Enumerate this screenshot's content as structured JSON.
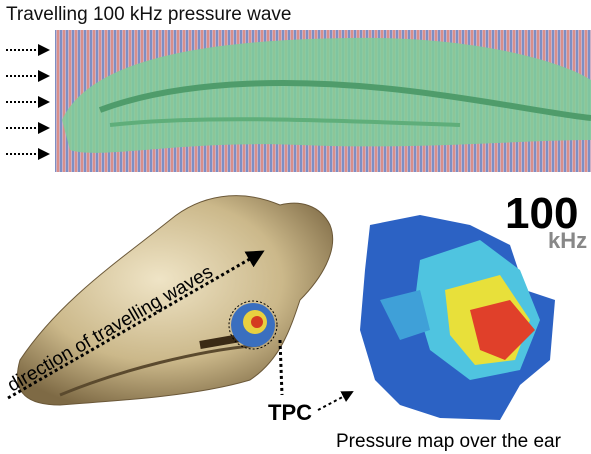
{
  "top_panel": {
    "title": "Travelling 100 kHz pressure wave"
  },
  "bottom_panel": {
    "direction_label": "direction of travelling waves",
    "frequency_value": "100",
    "frequency_unit": "kHz",
    "tpc_label": "TPC",
    "map_caption": "Pressure map over the ear"
  }
}
